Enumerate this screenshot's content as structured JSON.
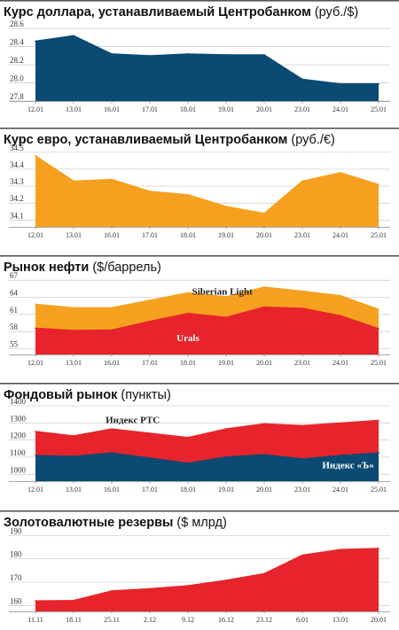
{
  "colors": {
    "navy": "#0b4a72",
    "orange": "#f5a11f",
    "red": "#e7242b",
    "rule": "#555555"
  },
  "chart_data": [
    {
      "type": "area",
      "title": "Курс доллара, устанавливаемый Центробанком",
      "subtitle": "(руб./$)",
      "categories": [
        "12.01",
        "13.01",
        "16.01",
        "17.01",
        "18.01",
        "19.01",
        "20.01",
        "23.01",
        "24.01",
        "25.01"
      ],
      "yticks": [
        27.8,
        28.0,
        28.2,
        28.4,
        28.6
      ],
      "ylim": [
        27.8,
        28.65
      ],
      "series": [
        {
          "color": "#0b4a72",
          "values": [
            28.46,
            28.52,
            28.32,
            28.3,
            28.32,
            28.31,
            28.31,
            28.04,
            27.99,
            27.99
          ]
        }
      ]
    },
    {
      "type": "area",
      "title": "Курс евро, устанавливаемый Центробанком",
      "subtitle": "(руб./€)",
      "categories": [
        "12.01",
        "13.01",
        "16.01",
        "17.01",
        "18.01",
        "19.01",
        "20.01",
        "23.01",
        "24.01",
        "25.01"
      ],
      "yticks": [
        34.1,
        34.2,
        34.3,
        34.4,
        34.5
      ],
      "ylim": [
        34.06,
        34.52
      ],
      "series": [
        {
          "color": "#f5a11f",
          "values": [
            34.48,
            34.33,
            34.34,
            34.27,
            34.25,
            34.18,
            34.14,
            34.33,
            34.38,
            34.31
          ]
        }
      ]
    },
    {
      "type": "area",
      "title": "Рынок нефти",
      "subtitle": "($/баррель)",
      "categories": [
        "12.01",
        "13.01",
        "16.01",
        "17.01",
        "18.01",
        "19.01",
        "20.01",
        "23.01",
        "24.01",
        "25.01"
      ],
      "yticks": [
        55,
        58,
        61,
        64,
        67
      ],
      "ylim": [
        54,
        67.5
      ],
      "series": [
        {
          "name": "Siberian Light",
          "color": "#f5a11f",
          "values": [
            62.8,
            62.2,
            62.2,
            63.5,
            64.8,
            64.1,
            65.8,
            65.1,
            64.3,
            61.9
          ]
        },
        {
          "name": "Urals",
          "color": "#e7242b",
          "values": [
            58.6,
            58.2,
            58.3,
            59.8,
            61.2,
            60.5,
            62.3,
            62.1,
            60.8,
            58.5
          ]
        }
      ]
    },
    {
      "type": "area",
      "title": "Фондовый рынок",
      "subtitle": "(пункты)",
      "categories": [
        "12.01",
        "13.01",
        "16.01",
        "17.01",
        "18.01",
        "19.01",
        "20.01",
        "23.01",
        "24.01",
        "25.01"
      ],
      "yticks": [
        1000,
        1100,
        1200,
        1300,
        1400
      ],
      "ylim": [
        960,
        1410
      ],
      "series": [
        {
          "name": "Индекс РТС",
          "color": "#e7242b",
          "values": [
            1250,
            1225,
            1265,
            1240,
            1215,
            1265,
            1295,
            1285,
            1300,
            1315
          ]
        },
        {
          "name": "Индекс «Ъ»",
          "color": "#0b4a72",
          "values": [
            1110,
            1105,
            1125,
            1095,
            1065,
            1100,
            1115,
            1090,
            1110,
            1125
          ]
        }
      ]
    },
    {
      "type": "area",
      "title": "Золотовалютные резервы",
      "subtitle": "($ млрд)",
      "categories": [
        "11.11",
        "18.11",
        "25.11",
        "2.12",
        "9.12",
        "16.12",
        "23.12",
        "6.01",
        "13.01",
        "20.01"
      ],
      "yticks": [
        160,
        170,
        180,
        190
      ],
      "ylim": [
        157.5,
        190.5
      ],
      "series": [
        {
          "color": "#e7242b",
          "values": [
            162.0,
            162.2,
            166.3,
            167.2,
            168.5,
            170.8,
            173.7,
            181.6,
            184.0,
            184.5
          ]
        }
      ]
    }
  ]
}
